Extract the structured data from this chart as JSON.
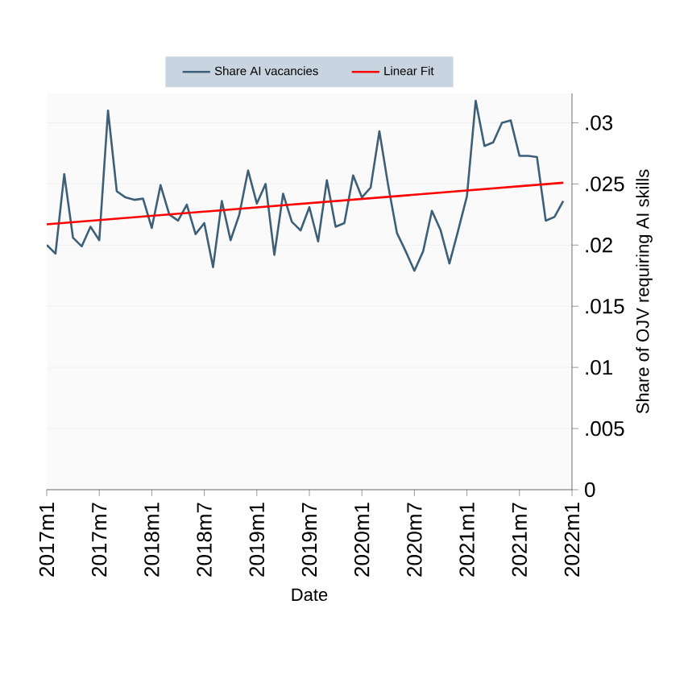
{
  "chart_data": {
    "type": "line",
    "xlabel": "Date",
    "ylabel": "Share of OJV requiring AI skills",
    "x": [
      "2017-01",
      "2017-02",
      "2017-03",
      "2017-04",
      "2017-05",
      "2017-06",
      "2017-07",
      "2017-08",
      "2017-09",
      "2017-10",
      "2017-11",
      "2017-12",
      "2018-01",
      "2018-02",
      "2018-03",
      "2018-04",
      "2018-05",
      "2018-06",
      "2018-07",
      "2018-08",
      "2018-09",
      "2018-10",
      "2018-11",
      "2018-12",
      "2019-01",
      "2019-02",
      "2019-03",
      "2019-04",
      "2019-05",
      "2019-06",
      "2019-07",
      "2019-08",
      "2019-09",
      "2019-10",
      "2019-11",
      "2019-12",
      "2020-01",
      "2020-02",
      "2020-03",
      "2020-04",
      "2020-05",
      "2020-06",
      "2020-07",
      "2020-08",
      "2020-09",
      "2020-10",
      "2020-11",
      "2020-12",
      "2021-01",
      "2021-02",
      "2021-03",
      "2021-04",
      "2021-05",
      "2021-06",
      "2021-07",
      "2021-08",
      "2021-09",
      "2021-10",
      "2021-11",
      "2021-12"
    ],
    "series": [
      {
        "name": "Share AI vacancies",
        "color": "#3e5f78",
        "values": [
          0.02,
          0.0193,
          0.0258,
          0.0206,
          0.0199,
          0.0215,
          0.0204,
          0.031,
          0.0244,
          0.0239,
          0.0237,
          0.0238,
          0.0214,
          0.0249,
          0.0225,
          0.022,
          0.0233,
          0.0209,
          0.0218,
          0.0182,
          0.0236,
          0.0204,
          0.0225,
          0.0261,
          0.0234,
          0.025,
          0.0192,
          0.0242,
          0.0219,
          0.0212,
          0.0231,
          0.0203,
          0.0253,
          0.0215,
          0.0218,
          0.0257,
          0.0239,
          0.0247,
          0.0293,
          0.0249,
          0.021,
          0.0195,
          0.0179,
          0.0195,
          0.0228,
          0.0212,
          0.0185,
          0.0212,
          0.024,
          0.0318,
          0.0281,
          0.0284,
          0.03,
          0.0302,
          0.0273,
          0.0273,
          0.0272,
          0.022,
          0.0223,
          0.0236
        ]
      },
      {
        "name": "Linear Fit",
        "color": "#ff0000",
        "x": [
          "2017-01",
          "2021-12"
        ],
        "values": [
          0.0217,
          0.0251
        ]
      }
    ],
    "xlim": [
      "2017-01",
      "2022-01"
    ],
    "xticks": [
      {
        "value": "2017-01",
        "label": "2017m1"
      },
      {
        "value": "2017-07",
        "label": "2017m7"
      },
      {
        "value": "2018-01",
        "label": "2018m1"
      },
      {
        "value": "2018-07",
        "label": "2018m7"
      },
      {
        "value": "2019-01",
        "label": "2019m1"
      },
      {
        "value": "2019-07",
        "label": "2019m7"
      },
      {
        "value": "2020-01",
        "label": "2020m1"
      },
      {
        "value": "2020-07",
        "label": "2020m7"
      },
      {
        "value": "2021-01",
        "label": "2021m1"
      },
      {
        "value": "2021-07",
        "label": "2021m7"
      },
      {
        "value": "2022-01",
        "label": "2022m1"
      }
    ],
    "ylim": [
      0,
      0.0324
    ],
    "yticks": [
      0,
      {
        "value": 0.005,
        "label": ".005"
      },
      {
        "value": 0.01,
        "label": ".01"
      },
      {
        "value": 0.015,
        "label": ".015"
      },
      {
        "value": 0.02,
        "label": ".02"
      },
      {
        "value": 0.025,
        "label": ".025"
      },
      {
        "value": 0.03,
        "label": ".03"
      }
    ],
    "grid": "y",
    "legend": "top"
  }
}
